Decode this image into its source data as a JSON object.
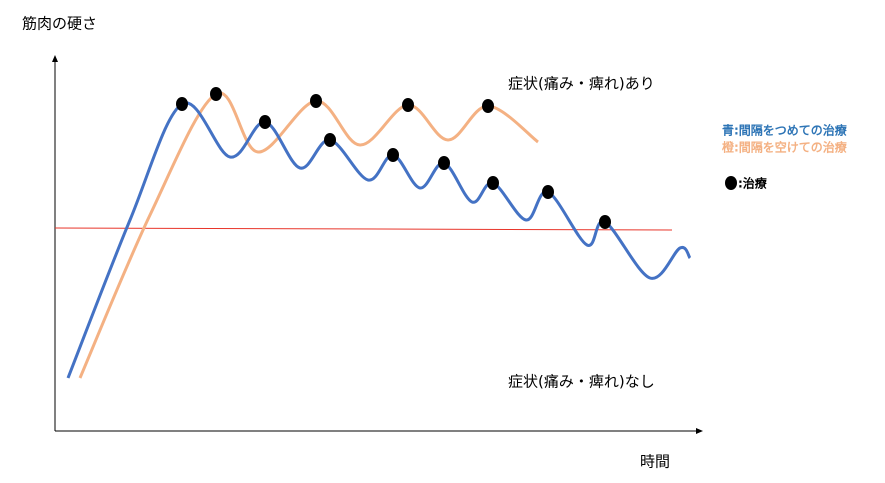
{
  "header": {
    "y_axis_label": "筋肉の硬さ",
    "x_axis_label": "時間"
  },
  "annotations": {
    "with_symptoms": "症状(痛み・痺れ)あり",
    "without_symptoms": "症状(痛み・痺れ)なし"
  },
  "legend": {
    "blue": "青:間隔をつめての治療",
    "orange": "橙:間隔を空けての治療",
    "treatment": ":治療"
  }
}
